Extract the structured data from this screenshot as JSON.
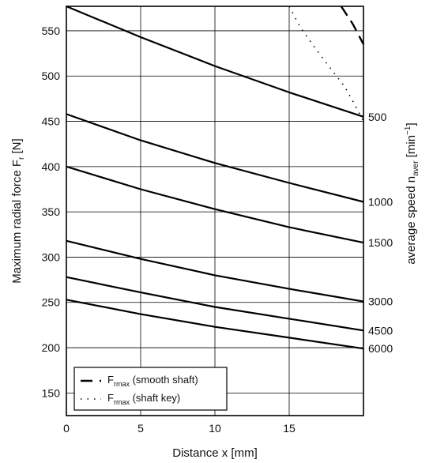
{
  "chart_data": {
    "type": "line",
    "xlabel": "Distance x [mm]",
    "ylabel": "Maximum radial force F",
    "ylabel_sub": "r",
    "ylabel_unit": " [N]",
    "y2label": "average speed n",
    "y2label_sub": "aver",
    "y2label_unit_open": " [min",
    "y2label_unit_sup": "−1",
    "y2label_unit_close": "]",
    "xlim": [
      0,
      20
    ],
    "ylim": [
      125,
      577
    ],
    "x_ticks": [
      0,
      5,
      10,
      15
    ],
    "y_ticks": [
      150,
      200,
      250,
      300,
      350,
      400,
      450,
      500,
      550
    ],
    "grid": true,
    "series": [
      {
        "name": "500",
        "style": "solid",
        "x": [
          0,
          5,
          10,
          15,
          20
        ],
        "y": [
          577,
          543,
          511,
          482,
          455
        ]
      },
      {
        "name": "1000",
        "style": "solid",
        "x": [
          0,
          5,
          10,
          15,
          20
        ],
        "y": [
          458,
          429,
          404,
          382,
          361
        ]
      },
      {
        "name": "1500",
        "style": "solid",
        "x": [
          0,
          5,
          10,
          15,
          20
        ],
        "y": [
          400,
          375,
          353,
          333,
          316
        ]
      },
      {
        "name": "3000",
        "style": "solid",
        "x": [
          0,
          5,
          10,
          15,
          20
        ],
        "y": [
          318,
          298,
          280,
          265,
          251
        ]
      },
      {
        "name": "4500",
        "style": "solid",
        "x": [
          0,
          5,
          10,
          15,
          20
        ],
        "y": [
          278,
          261,
          245,
          232,
          219
        ]
      },
      {
        "name": "6000",
        "style": "solid",
        "x": [
          0,
          5,
          10,
          15,
          20
        ],
        "y": [
          253,
          237,
          223,
          211,
          199
        ]
      },
      {
        "name": "Frmax (smooth shaft)",
        "style": "dashed",
        "x": [
          18.5,
          19.3,
          20
        ],
        "y": [
          577,
          557,
          535
        ]
      },
      {
        "name": "Frmax (shaft key)",
        "style": "dotted",
        "x": [
          15,
          15.7,
          16.7,
          17.7,
          18.7,
          19.4,
          20
        ],
        "y": [
          577,
          555,
          532,
          510,
          489,
          469,
          450
        ]
      }
    ],
    "right_labels": [
      {
        "text": "500",
        "y": 455
      },
      {
        "text": "1000",
        "y": 361
      },
      {
        "text": "1500",
        "y": 316
      },
      {
        "text": "3000",
        "y": 251
      },
      {
        "text": "4500",
        "y": 219
      },
      {
        "text": "6000",
        "y": 199
      }
    ],
    "legend": {
      "placement": "bottom-left",
      "items": [
        {
          "style": "dashed",
          "label_main": "F",
          "label_sub": "rmax",
          "label_rest": " (smooth shaft)"
        },
        {
          "style": "dotted",
          "label_main": "F",
          "label_sub": "rmax",
          "label_rest": " (shaft key)"
        }
      ]
    },
    "colors": {
      "line": "#000000",
      "grid": "#000000",
      "background": "#ffffff"
    }
  }
}
